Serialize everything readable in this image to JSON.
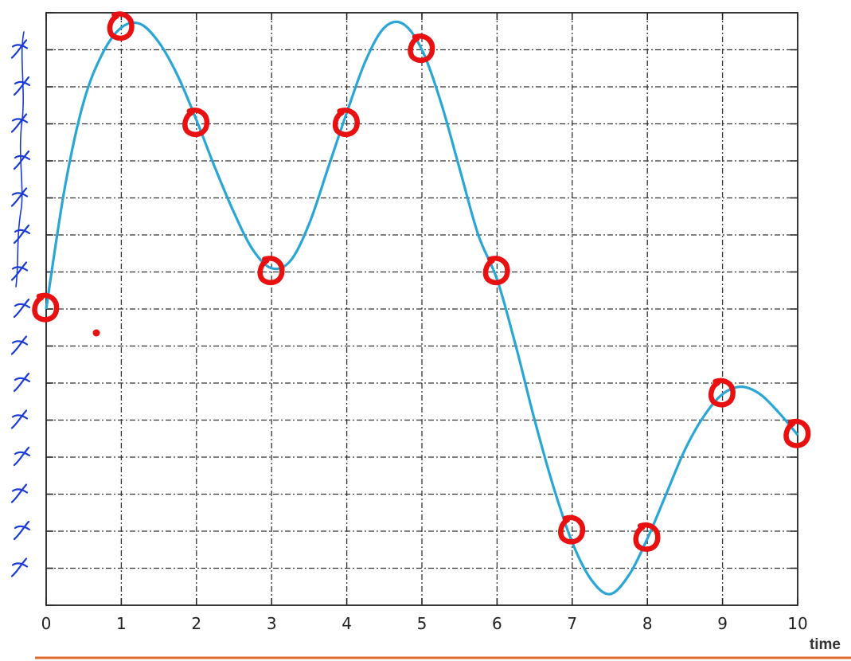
{
  "chart_data": {
    "type": "line",
    "xlabel": "time",
    "ylabel": "",
    "xlim": [
      0,
      10
    ],
    "ylim": [
      0,
      16
    ],
    "grid": true,
    "x_ticks": [
      "0",
      "1",
      "2",
      "3",
      "4",
      "5",
      "6",
      "7",
      "8",
      "9",
      "10"
    ],
    "series": [
      {
        "color": "#2aa6d6",
        "x": [
          0,
          0.25,
          0.5,
          0.75,
          1.0,
          1.25,
          1.5,
          1.75,
          2.0,
          2.25,
          2.5,
          2.75,
          3.0,
          3.25,
          3.5,
          3.75,
          4.0,
          4.25,
          4.5,
          4.75,
          5.0,
          5.25,
          5.5,
          5.75,
          6.0,
          6.25,
          6.5,
          6.75,
          7.0,
          7.25,
          7.5,
          7.75,
          8.0,
          8.25,
          8.5,
          8.75,
          9.0,
          9.25,
          9.5,
          9.75,
          10.0
        ],
        "y": [
          8.0,
          11.3,
          13.6,
          14.9,
          15.6,
          15.7,
          15.2,
          14.3,
          13.1,
          11.8,
          10.6,
          9.6,
          9.1,
          9.3,
          10.3,
          11.8,
          13.3,
          14.7,
          15.6,
          15.7,
          15.0,
          13.6,
          11.8,
          10.0,
          8.8,
          7.0,
          5.0,
          3.2,
          1.7,
          0.7,
          0.3,
          0.8,
          1.8,
          3.0,
          4.2,
          5.1,
          5.7,
          5.9,
          5.7,
          5.2,
          4.6
        ]
      }
    ],
    "annotation_points": [
      {
        "x": 0,
        "y": 8
      },
      {
        "x": 1,
        "y": 15.6
      },
      {
        "x": 2,
        "y": 13
      },
      {
        "x": 3,
        "y": 9
      },
      {
        "x": 4,
        "y": 13
      },
      {
        "x": 5,
        "y": 15
      },
      {
        "x": 6,
        "y": 9
      },
      {
        "x": 7,
        "y": 2
      },
      {
        "x": 8,
        "y": 1.8
      },
      {
        "x": 9,
        "y": 5.7
      },
      {
        "x": 10,
        "y": 4.6
      }
    ],
    "annotation_color": "#e81010",
    "handwritten_scale_color": "#1a3ad8",
    "handwritten_scale_text": [
      "1",
      "2",
      "3",
      "4",
      "5",
      "6",
      "7",
      "8",
      "9",
      "10",
      "11",
      "12",
      "13",
      "14",
      "15"
    ],
    "footer_rule_color": "#e06a2c"
  }
}
